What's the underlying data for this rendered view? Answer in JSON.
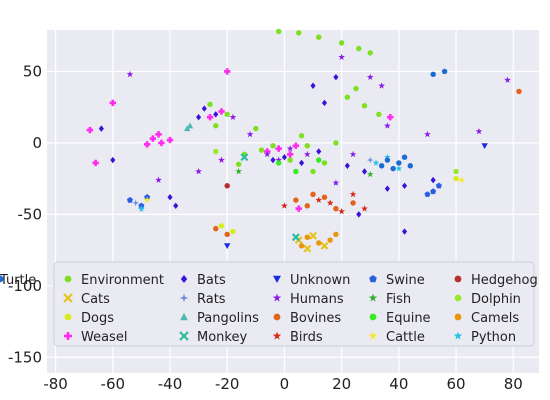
{
  "chart_data": {
    "type": "scatter",
    "title": "",
    "xlabel": "",
    "ylabel": "",
    "xlim": [
      -83,
      89
    ],
    "ylim": [
      -161,
      79
    ],
    "x_ticks": [
      -80,
      -60,
      -40,
      -20,
      0,
      20,
      40,
      60,
      80
    ],
    "y_ticks": [
      50,
      0,
      -50,
      -100,
      -150
    ],
    "grid": true,
    "background": "#eaeaf2",
    "legend_placement": "lower-left",
    "legend_columns": 5,
    "series": [
      {
        "name": "Environment",
        "color": "#7ee020",
        "marker": "circle",
        "points": [
          [
            -2,
            78
          ],
          [
            5,
            77
          ],
          [
            12,
            74
          ],
          [
            20,
            70
          ],
          [
            26,
            66
          ],
          [
            30,
            63
          ],
          [
            25,
            38
          ],
          [
            22,
            32
          ],
          [
            28,
            26
          ],
          [
            33,
            20
          ],
          [
            -26,
            27
          ],
          [
            -20,
            20
          ],
          [
            -24,
            12
          ],
          [
            -14,
            -8
          ],
          [
            -8,
            -5
          ],
          [
            -4,
            -2
          ],
          [
            2,
            -12
          ],
          [
            8,
            -2
          ],
          [
            14,
            -14
          ],
          [
            -16,
            -15
          ],
          [
            6,
            5
          ],
          [
            -10,
            10
          ],
          [
            18,
            0
          ],
          [
            10,
            -20
          ]
        ]
      },
      {
        "name": "Cats",
        "color": "#e8c21c",
        "marker": "x",
        "points": [
          [
            5,
            -68
          ],
          [
            10,
            -65
          ],
          [
            14,
            -72
          ],
          [
            8,
            -74
          ]
        ]
      },
      {
        "name": "Dogs",
        "color": "#d8ec1c",
        "marker": "circle",
        "points": [
          [
            -22,
            -58
          ],
          [
            -18,
            -62
          ],
          [
            60,
            -25
          ]
        ]
      },
      {
        "name": "Weasel",
        "color": "#ff2cf0",
        "marker": "plus",
        "points": [
          [
            -46,
            3
          ],
          [
            -43,
            0
          ],
          [
            -48,
            -1
          ],
          [
            -44,
            6
          ],
          [
            -40,
            2
          ],
          [
            -2,
            -4
          ],
          [
            2,
            -8
          ],
          [
            -6,
            -6
          ],
          [
            4,
            -2
          ],
          [
            -22,
            22
          ],
          [
            -26,
            18
          ],
          [
            -20,
            50
          ],
          [
            37,
            18
          ],
          [
            -68,
            9
          ],
          [
            -66,
            -14
          ],
          [
            -60,
            28
          ],
          [
            5,
            -46
          ]
        ]
      },
      {
        "name": "Bats",
        "color": "#3a12d8",
        "marker": "diamond",
        "points": [
          [
            -28,
            24
          ],
          [
            -24,
            20
          ],
          [
            -30,
            18
          ],
          [
            0,
            -10
          ],
          [
            -4,
            -12
          ],
          [
            6,
            -14
          ],
          [
            12,
            -6
          ],
          [
            36,
            -32
          ],
          [
            42,
            -30
          ],
          [
            52,
            -26
          ],
          [
            -40,
            -38
          ],
          [
            -38,
            -44
          ],
          [
            26,
            -50
          ],
          [
            42,
            -62
          ],
          [
            -64,
            10
          ],
          [
            -60,
            -12
          ],
          [
            22,
            -16
          ],
          [
            28,
            -20
          ],
          [
            10,
            40
          ],
          [
            18,
            46
          ],
          [
            14,
            28
          ]
        ]
      },
      {
        "name": "Rats",
        "color": "#6a8ae0",
        "marker": "star4",
        "points": [
          [
            -52,
            -42
          ],
          [
            -50,
            -46
          ],
          [
            30,
            -12
          ]
        ]
      },
      {
        "name": "Pangolins",
        "color": "#4eb8b0",
        "marker": "triangle",
        "points": [
          [
            -34,
            10
          ],
          [
            -33,
            12
          ]
        ]
      },
      {
        "name": "Monkey",
        "color": "#2abc9c",
        "marker": "x",
        "points": [
          [
            4,
            -66
          ],
          [
            -14,
            -10
          ]
        ]
      },
      {
        "name": "Unknown",
        "color": "#1a2ce0",
        "marker": "triangle-down",
        "points": [
          [
            -20,
            -72
          ],
          [
            70,
            -2
          ]
        ]
      },
      {
        "name": "Humans",
        "color": "#8a1ee8",
        "marker": "star",
        "points": [
          [
            -6,
            -8
          ],
          [
            2,
            -4
          ],
          [
            -2,
            -12
          ],
          [
            8,
            -8
          ],
          [
            -18,
            18
          ],
          [
            -12,
            6
          ],
          [
            -22,
            -12
          ],
          [
            -30,
            -20
          ],
          [
            -44,
            -26
          ],
          [
            18,
            -28
          ],
          [
            24,
            -8
          ],
          [
            36,
            12
          ],
          [
            50,
            6
          ],
          [
            30,
            46
          ],
          [
            34,
            40
          ],
          [
            20,
            60
          ],
          [
            -54,
            48
          ],
          [
            68,
            8
          ],
          [
            78,
            44
          ]
        ]
      },
      {
        "name": "Bovines",
        "color": "#e0641c",
        "marker": "circle",
        "points": [
          [
            4,
            -40
          ],
          [
            8,
            -44
          ],
          [
            14,
            -38
          ],
          [
            18,
            -46
          ],
          [
            24,
            -42
          ],
          [
            10,
            -36
          ],
          [
            -24,
            -60
          ],
          [
            -20,
            -64
          ],
          [
            82,
            36
          ]
        ]
      },
      {
        "name": "Birds",
        "color": "#d8281c",
        "marker": "star",
        "points": [
          [
            0,
            -44
          ],
          [
            16,
            -42
          ],
          [
            28,
            -46
          ],
          [
            12,
            -40
          ],
          [
            20,
            -48
          ],
          [
            24,
            -36
          ]
        ]
      },
      {
        "name": "Swine",
        "color": "#2a60e0",
        "marker": "pentagon",
        "points": [
          [
            -54,
            -40
          ],
          [
            -50,
            -44
          ],
          [
            -48,
            -38
          ],
          [
            52,
            -34
          ],
          [
            54,
            -30
          ],
          [
            50,
            -36
          ]
        ]
      },
      {
        "name": "Fish",
        "color": "#34b02c",
        "marker": "star",
        "points": [
          [
            -16,
            -20
          ],
          [
            30,
            -22
          ]
        ]
      },
      {
        "name": "Equine",
        "color": "#34ec20",
        "marker": "circle",
        "points": [
          [
            -2,
            -14
          ],
          [
            4,
            -20
          ],
          [
            12,
            -12
          ]
        ]
      },
      {
        "name": "Cattle",
        "color": "#f8e828",
        "marker": "star",
        "points": [
          [
            -48,
            -40
          ],
          [
            62,
            -26
          ]
        ]
      },
      {
        "name": "Hedgehog",
        "color": "#b43030",
        "marker": "circle",
        "points": [
          [
            -20,
            -30
          ]
        ]
      },
      {
        "name": "Dolphin",
        "color": "#9ae82a",
        "marker": "circle",
        "points": [
          [
            -24,
            -6
          ],
          [
            60,
            -20
          ]
        ]
      },
      {
        "name": "Camels",
        "color": "#e8960c",
        "marker": "circle",
        "points": [
          [
            8,
            -66
          ],
          [
            12,
            -70
          ],
          [
            16,
            -68
          ],
          [
            18,
            -64
          ],
          [
            6,
            -72
          ]
        ]
      },
      {
        "name": "Python",
        "color": "#20c4e8",
        "marker": "star",
        "points": [
          [
            32,
            -14
          ],
          [
            36,
            -10
          ],
          [
            40,
            -18
          ],
          [
            -50,
            -46
          ]
        ]
      },
      {
        "name": "Turtle",
        "color": "#1c6ad4",
        "marker": "circle",
        "points": [
          [
            36,
            -12
          ],
          [
            40,
            -14
          ],
          [
            38,
            -18
          ],
          [
            42,
            -10
          ],
          [
            44,
            -16
          ],
          [
            34,
            -16
          ],
          [
            52,
            48
          ],
          [
            56,
            50
          ]
        ]
      }
    ]
  }
}
